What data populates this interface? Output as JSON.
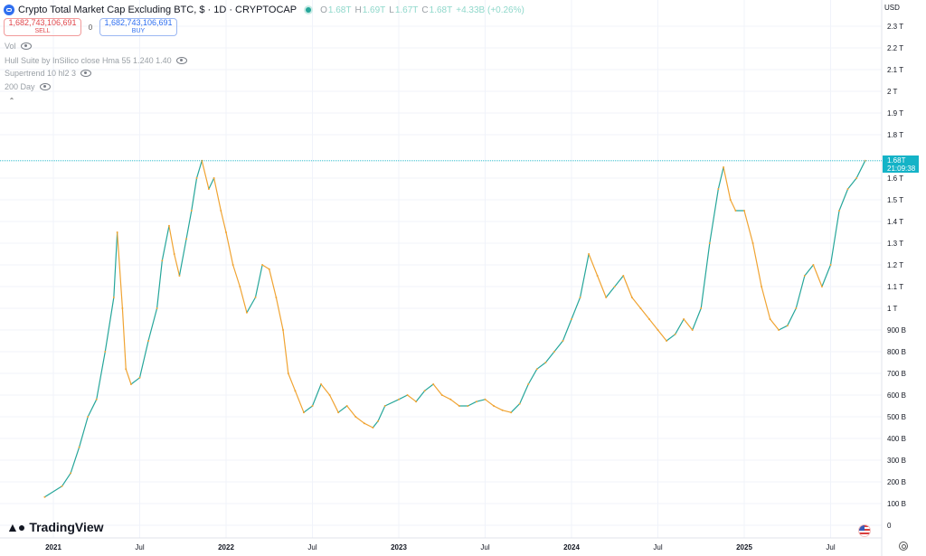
{
  "header": {
    "title": "Crypto Total Market Cap Excluding BTC, $ · 1D · CRYPTOCAP",
    "ohlc": [
      {
        "k": "O",
        "v": "1.68T"
      },
      {
        "k": "H",
        "v": "1.69T"
      },
      {
        "k": "L",
        "v": "1.67T"
      },
      {
        "k": "C",
        "v": "1.68T"
      },
      {
        "k": "",
        "v": "+4.33B (+0.26%)"
      }
    ]
  },
  "trade": {
    "sell_price": "1,682,743,106,691",
    "sell_label": "SELL",
    "spread": "0",
    "buy_price": "1,682,743,106,691",
    "buy_label": "BUY"
  },
  "indicators": [
    "Vol",
    "Hull Suite by InSilico close Hma 55 1.240 1.40",
    "Supertrend 10 hl2 3",
    "200 Day"
  ],
  "price_axis": {
    "currency": "USD",
    "labels": [
      "2.3 T",
      "2.2 T",
      "2.1 T",
      "2 T",
      "1.9 T",
      "1.8 T",
      "1.6 T",
      "1.5 T",
      "1.4 T",
      "1.3 T",
      "1.2 T",
      "1.1 T",
      "1 T",
      "900 B",
      "800 B",
      "700 B",
      "600 B",
      "500 B",
      "400 B",
      "300 B",
      "200 B",
      "100 B",
      "0"
    ],
    "values": [
      2.3,
      2.2,
      2.1,
      2.0,
      1.9,
      1.8,
      1.6,
      1.5,
      1.4,
      1.3,
      1.2,
      1.1,
      1.0,
      0.9,
      0.8,
      0.7,
      0.6,
      0.5,
      0.4,
      0.3,
      0.2,
      0.1,
      0
    ]
  },
  "current_price": {
    "label": "1.68T",
    "countdown": "21:09:38",
    "value": 1.68
  },
  "time_axis": {
    "labels": [
      "2021",
      "Jul",
      "2022",
      "Jul",
      "2023",
      "Jul",
      "2024",
      "Jul",
      "2025",
      "Jul"
    ],
    "dates": [
      2021.0,
      2021.5,
      2022.0,
      2022.5,
      2023.0,
      2023.5,
      2024.0,
      2024.5,
      2025.0,
      2025.5
    ]
  },
  "branding": {
    "logo_text": "TradingView"
  },
  "colors": {
    "up": "#26a69a",
    "down": "#f0a433",
    "accent": "#14b3c7",
    "grid": "#f0f3fa"
  },
  "chart_data": {
    "type": "line",
    "title": "Crypto Total Market Cap Excluding BTC, $ · 1D · CRYPTOCAP",
    "xlabel": "",
    "ylabel": "",
    "ylim": [
      0,
      2.4
    ],
    "y_unit": "trillion USD",
    "grid": true,
    "series": [
      {
        "x": [
          2020.95,
          2021.05,
          2021.1,
          2021.15,
          2021.2,
          2021.25,
          2021.3,
          2021.35,
          2021.37,
          2021.4,
          2021.42,
          2021.45,
          2021.5,
          2021.55,
          2021.6,
          2021.63,
          2021.67,
          2021.7,
          2021.73,
          2021.77,
          2021.8,
          2021.83,
          2021.86,
          2021.9,
          2021.93,
          2021.97,
          2022.0,
          2022.04,
          2022.08,
          2022.12,
          2022.17,
          2022.21,
          2022.25,
          2022.29,
          2022.33,
          2022.36,
          2022.4,
          2022.45,
          2022.5,
          2022.55,
          2022.6,
          2022.65,
          2022.7,
          2022.75,
          2022.8,
          2022.85,
          2022.88,
          2022.92,
          2023.0,
          2023.05,
          2023.1,
          2023.15,
          2023.2,
          2023.25,
          2023.3,
          2023.35,
          2023.4,
          2023.45,
          2023.5,
          2023.55,
          2023.6,
          2023.65,
          2023.7,
          2023.75,
          2023.8,
          2023.85,
          2023.9,
          2023.95,
          2024.0,
          2024.05,
          2024.1,
          2024.15,
          2024.2,
          2024.25,
          2024.3,
          2024.35,
          2024.4,
          2024.45,
          2024.5,
          2024.55,
          2024.6,
          2024.65,
          2024.7,
          2024.75,
          2024.8,
          2024.85,
          2024.88,
          2024.92,
          2024.95,
          2025.0,
          2025.05,
          2025.1,
          2025.15,
          2025.2,
          2025.25,
          2025.3,
          2025.35,
          2025.4,
          2025.45,
          2025.5,
          2025.55,
          2025.6,
          2025.65,
          2025.7
        ],
        "y": [
          0.13,
          0.18,
          0.24,
          0.36,
          0.5,
          0.58,
          0.8,
          1.05,
          1.35,
          1.0,
          0.72,
          0.65,
          0.68,
          0.85,
          1.0,
          1.22,
          1.38,
          1.25,
          1.15,
          1.32,
          1.45,
          1.6,
          1.68,
          1.55,
          1.6,
          1.45,
          1.35,
          1.2,
          1.1,
          0.98,
          1.05,
          1.2,
          1.18,
          1.05,
          0.9,
          0.7,
          0.62,
          0.52,
          0.55,
          0.65,
          0.6,
          0.52,
          0.55,
          0.5,
          0.47,
          0.45,
          0.48,
          0.55,
          0.58,
          0.6,
          0.57,
          0.62,
          0.65,
          0.6,
          0.58,
          0.55,
          0.55,
          0.57,
          0.58,
          0.55,
          0.53,
          0.52,
          0.56,
          0.65,
          0.72,
          0.75,
          0.8,
          0.85,
          0.95,
          1.05,
          1.25,
          1.15,
          1.05,
          1.1,
          1.15,
          1.05,
          1.0,
          0.95,
          0.9,
          0.85,
          0.88,
          0.95,
          0.9,
          1.0,
          1.3,
          1.55,
          1.65,
          1.5,
          1.45,
          1.45,
          1.3,
          1.1,
          0.95,
          0.9,
          0.92,
          1.0,
          1.15,
          1.2,
          1.1,
          1.2,
          1.45,
          1.55,
          1.6,
          1.68
        ]
      }
    ]
  }
}
